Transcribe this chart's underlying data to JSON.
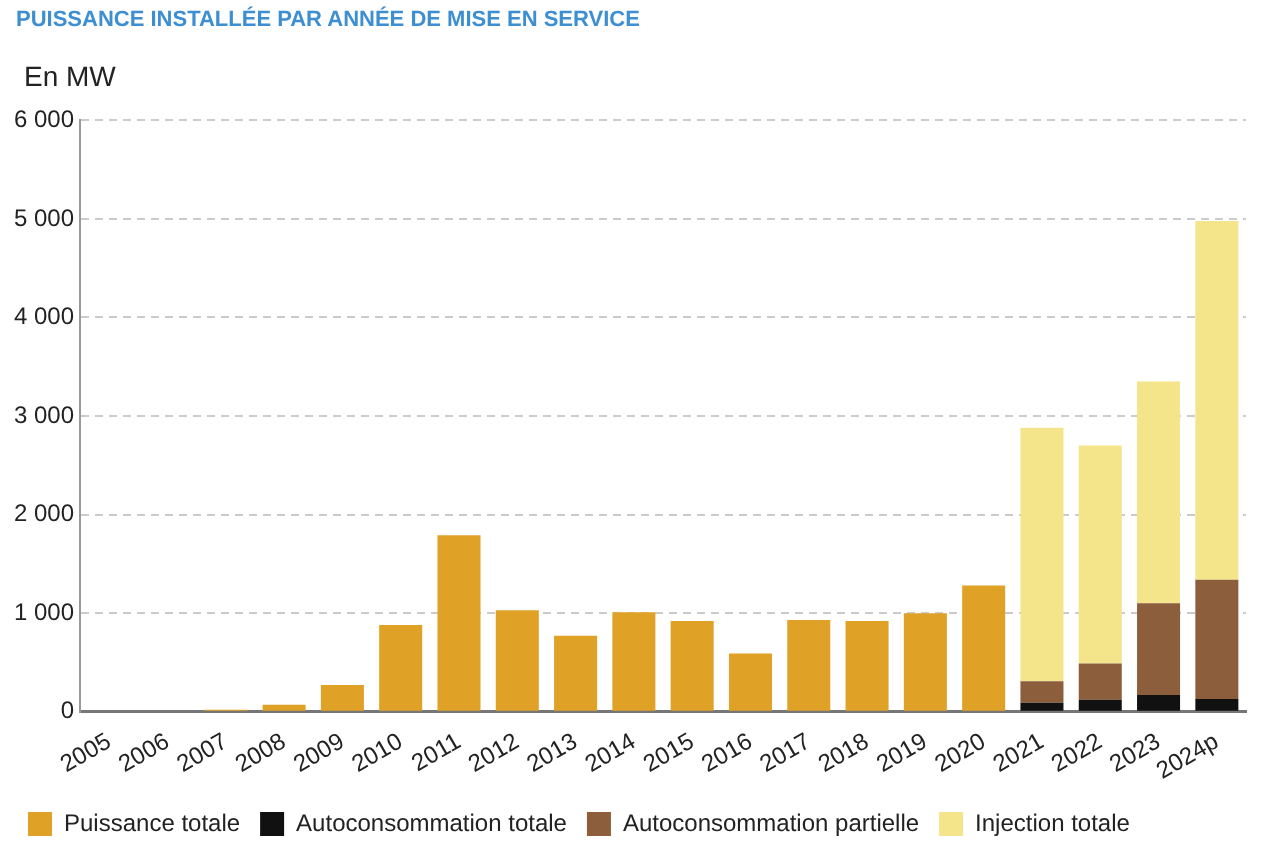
{
  "chart_data": {
    "type": "bar",
    "title": "PUISSANCE INSTALLÉE PAR ANNÉE DE MISE EN SERVICE",
    "ylabel": "En MW",
    "categories": [
      "2005",
      "2006",
      "2007",
      "2008",
      "2009",
      "2010",
      "2011",
      "2012",
      "2013",
      "2014",
      "2015",
      "2016",
      "2017",
      "2018",
      "2019",
      "2020",
      "2021",
      "2022",
      "2023",
      "2024p"
    ],
    "stacked": true,
    "series": [
      {
        "name": "Puissance totale",
        "color": "#dfa126",
        "values": [
          null,
          null,
          20,
          70,
          270,
          880,
          1790,
          1030,
          770,
          1010,
          920,
          590,
          930,
          920,
          1000,
          1280,
          null,
          null,
          null,
          null
        ]
      },
      {
        "name": "Autoconsommation totale",
        "color": "#111111",
        "values": [
          null,
          null,
          null,
          null,
          null,
          null,
          null,
          null,
          null,
          null,
          null,
          null,
          null,
          null,
          null,
          null,
          90,
          120,
          170,
          130
        ]
      },
      {
        "name": "Autoconsommation partielle",
        "color": "#8c5e3c",
        "values": [
          null,
          null,
          null,
          null,
          null,
          null,
          null,
          null,
          null,
          null,
          null,
          null,
          null,
          null,
          null,
          null,
          220,
          370,
          930,
          1210
        ]
      },
      {
        "name": "Injection totale",
        "color": "#f4e48a",
        "values": [
          null,
          null,
          null,
          null,
          null,
          null,
          null,
          null,
          null,
          null,
          null,
          null,
          null,
          null,
          null,
          null,
          2570,
          2210,
          2250,
          3640
        ]
      }
    ],
    "ylim": [
      0,
      6000
    ],
    "yticks": [
      0,
      {
        "value": 1000,
        "label": "1 000"
      },
      {
        "value": 2000,
        "label": "2 000"
      },
      {
        "value": 3000,
        "label": "3 000"
      },
      {
        "value": 4000,
        "label": "4 000"
      },
      {
        "value": 5000,
        "label": "5 000"
      },
      {
        "value": 6000,
        "label": "6 000"
      }
    ],
    "grid": "y",
    "legend": "bottom"
  }
}
